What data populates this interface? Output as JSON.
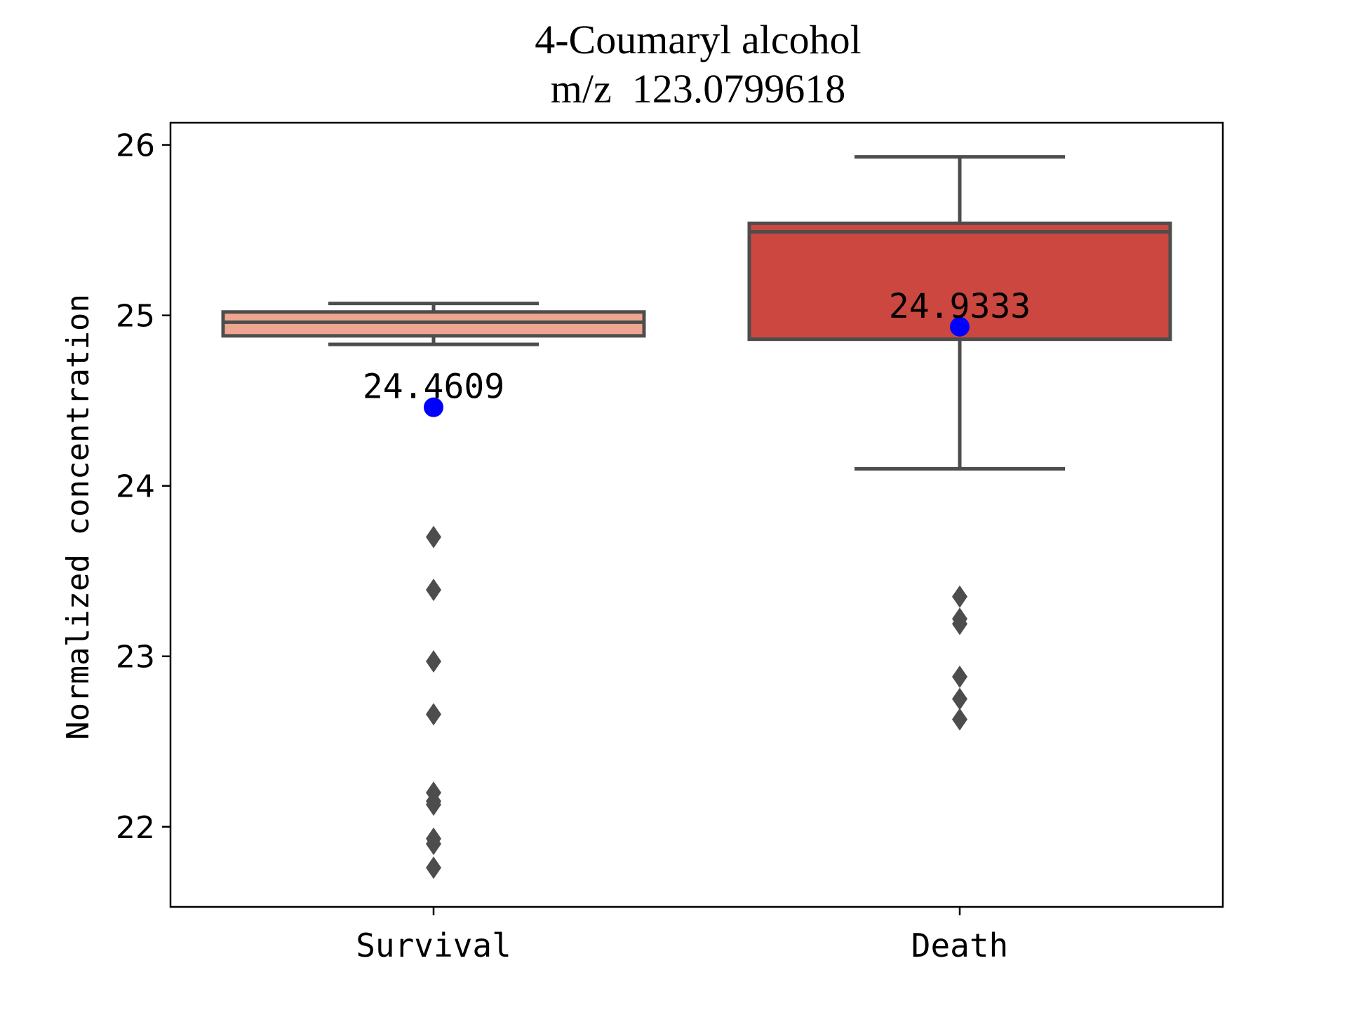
{
  "chart_data": {
    "type": "box",
    "title": "4-Coumaryl alcohol",
    "subtitle": "m/z  123.0799618",
    "xlabel": "",
    "ylabel": "Normalized concentration",
    "ylim": [
      21.53,
      26.13
    ],
    "yticks": [
      22,
      23,
      24,
      25,
      26
    ],
    "ytick_labels": [
      "22",
      "23",
      "24",
      "25",
      "26"
    ],
    "grid": false,
    "categories": [
      "Survival",
      "Death"
    ],
    "boxes": [
      {
        "name": "Survival",
        "color": "#EFA690",
        "whisker_low": 24.83,
        "q1": 24.88,
        "median": 24.96,
        "q3": 25.02,
        "whisker_high": 25.07,
        "outliers": [
          23.7,
          23.39,
          22.97,
          22.66,
          22.2,
          22.15,
          22.13,
          21.93,
          21.9,
          21.76
        ],
        "marker_value": 24.4609,
        "marker_label": "24.4609"
      },
      {
        "name": "Death",
        "color": "#CB4740",
        "whisker_low": 24.1,
        "q1": 24.86,
        "median": 25.49,
        "q3": 25.54,
        "whisker_high": 25.93,
        "outliers": [
          23.35,
          23.22,
          23.19,
          22.88,
          22.75,
          22.63
        ],
        "marker_value": 24.9333,
        "marker_label": "24.9333"
      }
    ],
    "colors": {
      "line": "#4d4d4d",
      "outlier": "#4d4d4d",
      "marker": "#0000ff",
      "axes": "#000000"
    }
  }
}
